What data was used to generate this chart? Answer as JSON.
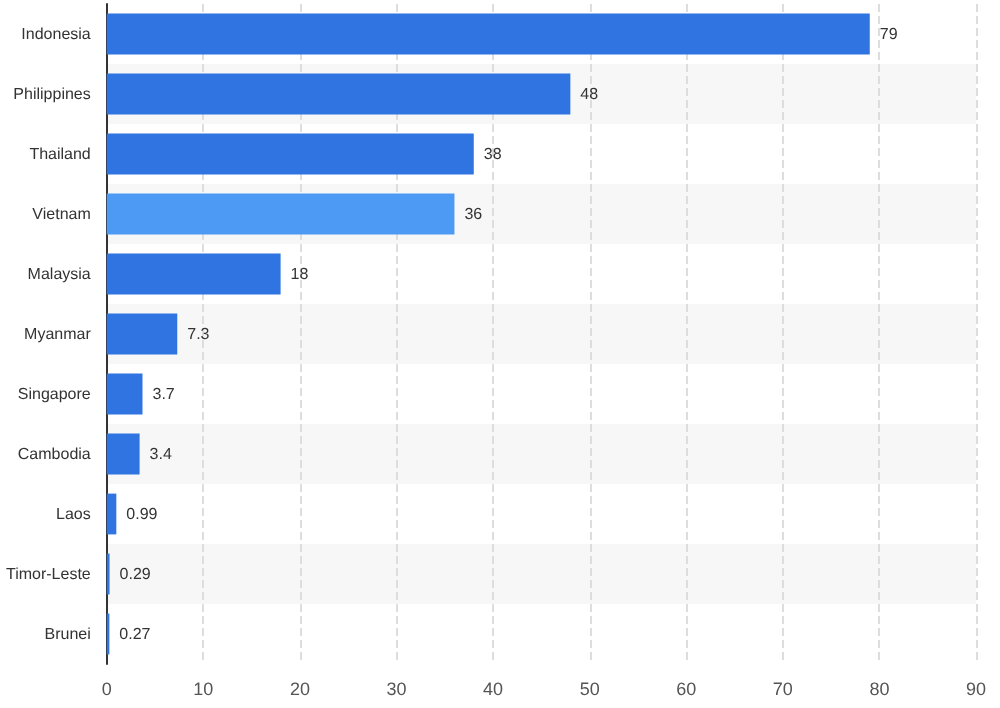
{
  "chart_data": {
    "type": "bar",
    "orientation": "horizontal",
    "categories": [
      "Indonesia",
      "Philippines",
      "Thailand",
      "Vietnam",
      "Malaysia",
      "Myanmar",
      "Singapore",
      "Cambodia",
      "Laos",
      "Timor-Leste",
      "Brunei"
    ],
    "values": [
      79,
      48,
      38,
      36,
      18,
      7.3,
      3.7,
      3.4,
      0.99,
      0.29,
      0.27
    ],
    "colors": [
      "#2f74e0",
      "#2f74e0",
      "#2f74e0",
      "#4d9af5",
      "#2f74e0",
      "#2f74e0",
      "#2f74e0",
      "#2f74e0",
      "#2f74e0",
      "#2f74e0",
      "#2f74e0"
    ],
    "xlim": [
      0,
      90
    ],
    "xticks": [
      0,
      10,
      20,
      30,
      40,
      50,
      60,
      70,
      80,
      90
    ],
    "grid": "x",
    "data_labels": true
  }
}
